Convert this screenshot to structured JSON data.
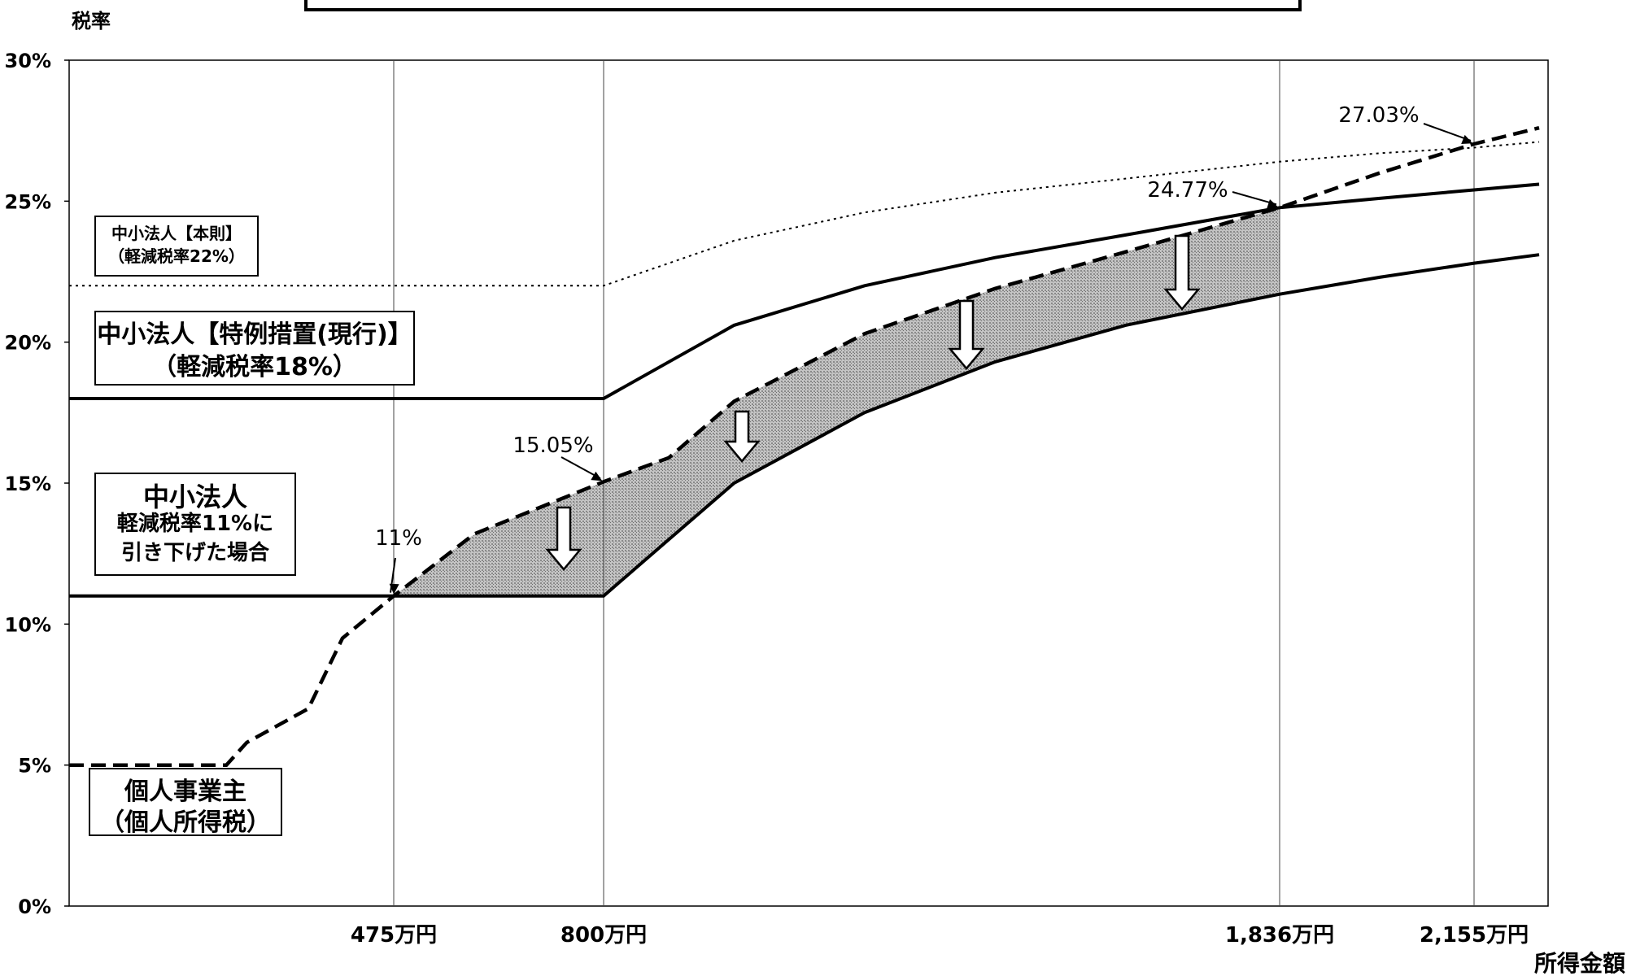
{
  "chart_data": {
    "type": "line",
    "title": "",
    "ylabel": "税率",
    "xlabel": "所得金額",
    "ylim": [
      0,
      30
    ],
    "y_ticks": [
      "0%",
      "5%",
      "10%",
      "15%",
      "20%",
      "25%",
      "30%"
    ],
    "x_ticks": [
      {
        "value": 475,
        "label": "475万円"
      },
      {
        "value": 800,
        "label": "800万円"
      },
      {
        "value": 1836,
        "label": "1,836万円"
      },
      {
        "value": 2155,
        "label": "2,155万円"
      }
    ],
    "grid": false,
    "series": [
      {
        "name": "中小法人【本則】（軽減税率22%）",
        "style": "dotted",
        "x": [
          0,
          800,
          1000,
          1200,
          1400,
          1600,
          1836,
          2000,
          2155,
          2300
        ],
        "y": [
          22,
          22,
          23.6,
          24.6,
          25.3,
          25.8,
          26.4,
          26.7,
          26.9,
          27.1
        ]
      },
      {
        "name": "中小法人【特例措置(現行)】（軽減税率18%）",
        "style": "solid",
        "x": [
          0,
          800,
          1000,
          1200,
          1400,
          1600,
          1836,
          2000,
          2155,
          2300
        ],
        "y": [
          18,
          18,
          20.6,
          22.0,
          23.0,
          23.8,
          24.77,
          25.1,
          25.4,
          25.6
        ]
      },
      {
        "name": "中小法人（軽減税率11%に引き下げた場合）",
        "style": "solid",
        "x": [
          0,
          800,
          900,
          1000,
          1200,
          1400,
          1600,
          1836,
          2000,
          2155,
          2300
        ],
        "y": [
          11,
          11,
          13.0,
          15.0,
          17.5,
          19.3,
          20.6,
          21.7,
          22.3,
          22.8,
          23.1
        ]
      },
      {
        "name": "個人事業主（個人所得税）",
        "style": "dashed",
        "x": [
          0,
          230,
          260,
          350,
          400,
          475,
          600,
          800,
          900,
          1000,
          1200,
          1400,
          1600,
          1836,
          2000,
          2155,
          2300
        ],
        "y": [
          5,
          5,
          5.8,
          7.0,
          9.5,
          11,
          13.2,
          15.05,
          15.9,
          17.9,
          20.3,
          21.9,
          23.2,
          24.77,
          26.0,
          27.03,
          27.6
        ]
      }
    ],
    "legend_labels": [
      {
        "series": 0,
        "lines": [
          "中小法人【本則】",
          "（軽減税率22%）"
        ]
      },
      {
        "series": 1,
        "lines": [
          "中小法人【特例措置(現行)】",
          "（軽減税率18%）"
        ]
      },
      {
        "series": 2,
        "lines": [
          "中小法人",
          "軽減税率11%に",
          "引き下げた場合"
        ]
      },
      {
        "series": 3,
        "lines": [
          "個人事業主",
          "（個人所得税）"
        ]
      }
    ],
    "annotations": [
      {
        "label": "11%",
        "x": 475,
        "y": 11
      },
      {
        "label": "15.05%",
        "x": 800,
        "y": 15.05
      },
      {
        "label": "24.77%",
        "x": 1836,
        "y": 24.77
      },
      {
        "label": "27.03%",
        "x": 2155,
        "y": 27.03
      }
    ],
    "shaded_region": {
      "between": [
        3,
        2
      ],
      "x_range": [
        475,
        1836
      ],
      "color": "#b0b0b0"
    },
    "arrows_x": [
      800,
      1000,
      1400,
      1836
    ]
  }
}
